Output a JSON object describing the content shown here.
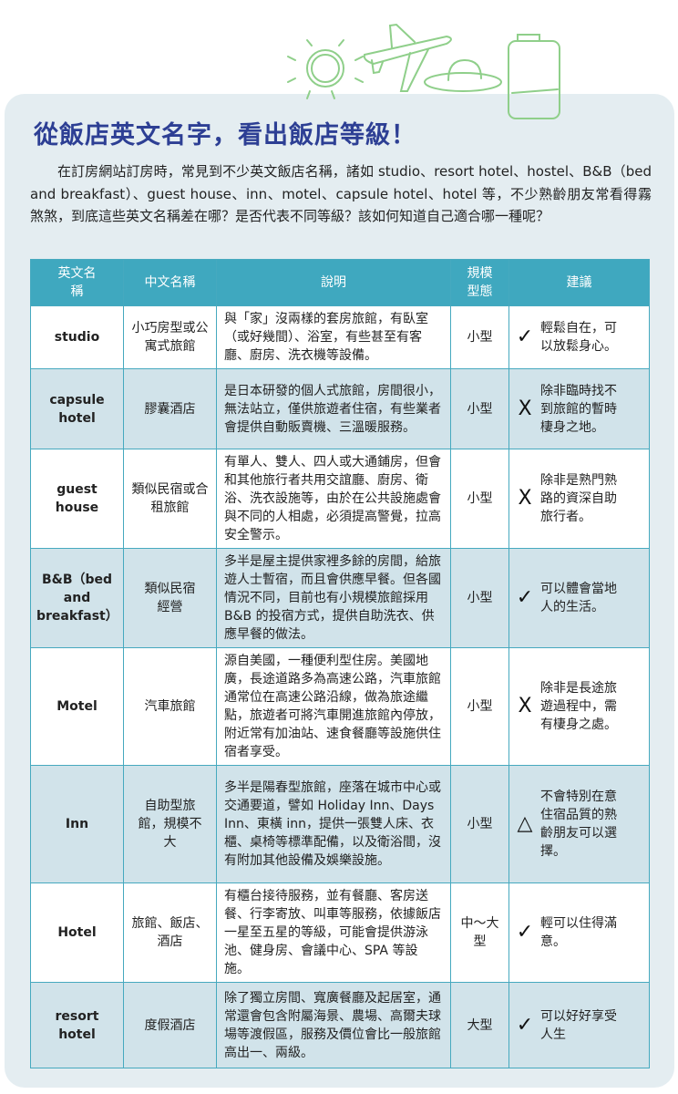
{
  "title": "從飯店英文名字，看出飯店等級！",
  "intro": "在訂房網站訂房時，常見到不少英文飯店名稱，諸如 studio、resort hotel、hostel、B&B（bed and breakfast）、guest house、inn、motel、capsule hotel、hotel 等，不少熟齡朋友常看得霧煞煞，到底這些英文名稱差在哪？是否代表不同等級？該如何知道自己適合哪一種呢？",
  "colors": {
    "title": "#2d3f94",
    "header": "#3fa8bf",
    "alt_row": "#d1e3ea",
    "card": "#e4edf1",
    "decoration": "#8fcf8a"
  },
  "decoration_icons": [
    "sun-icon",
    "airplane-icon",
    "hat-icon",
    "suitcase-icon"
  ],
  "table": {
    "headers": [
      "英文名稱",
      "中文名稱",
      "說明",
      "規模型態",
      "建議"
    ],
    "rows": [
      {
        "en": "studio",
        "zh": "小巧房型或公寓式旅館",
        "desc": "與「家」沒兩樣的套房旅館，有臥室（或好幾間）、浴室，有些甚至有客廳、廚房、洗衣機等設備。",
        "size": "小型",
        "mark": "✓",
        "mark_icon": "check-icon",
        "advice": "輕鬆自在，可以放鬆身心。"
      },
      {
        "en": "capsule hotel",
        "zh": "膠囊酒店",
        "desc": "是日本研發的個人式旅館，房間很小，無法站立，僅供旅遊者住宿，有些業者會提供自動販賣機、三溫暖服務。",
        "size": "小型",
        "mark": "X",
        "mark_icon": "cross-icon",
        "advice": "除非臨時找不到旅館的暫時棲身之地。"
      },
      {
        "en": "guest house",
        "zh": "類似民宿或合租旅館",
        "desc": "有單人、雙人、四人或大通鋪房，但會和其他旅行者共用交誼廳、廚房、衛浴、洗衣設施等，由於在公共設施處會與不同的人相處，必須提高警覺，拉高安全警示。",
        "size": "小型",
        "mark": "X",
        "mark_icon": "cross-icon",
        "advice": "除非是熟門熟路的資深自助旅行者。"
      },
      {
        "en": "B&B（bed and breakfast）",
        "zh": "類似民宿經營",
        "desc": "多半是屋主提供家裡多餘的房間，給旅遊人士暫宿，而且會供應早餐。但各國情況不同，目前也有小規模旅館採用 B&B 的投宿方式，提供自助洗衣、供應早餐的做法。",
        "size": "小型",
        "mark": "✓",
        "mark_icon": "check-icon",
        "advice": "可以體會當地人的生活。"
      },
      {
        "en": "Motel",
        "zh": "汽車旅館",
        "desc": "源自美國，一種便利型住房。美國地廣，長途道路多為高速公路，汽車旅館通常位在高速公路沿線，做為旅途繼點，旅遊者可將汽車開進旅館內停放，附近常有加油站、速食餐廳等設施供住宿者享受。",
        "size": "小型",
        "mark": "X",
        "mark_icon": "cross-icon",
        "advice": "除非是長途旅遊過程中，需有棲身之處。"
      },
      {
        "en": "Inn",
        "zh": "自助型旅館，規模不大",
        "desc": "多半是陽春型旅館，座落在城市中心或交通要道，譬如 Holiday Inn、Days Inn、東橫 inn，提供一張雙人床、衣櫃、桌椅等標準配備，以及衛浴間，沒有附加其他設備及娛樂設施。",
        "size": "小型",
        "mark": "△",
        "mark_icon": "triangle-icon",
        "advice": "不會特別在意住宿品質的熟齡朋友可以選擇。"
      },
      {
        "en": "Hotel",
        "zh": "旅館、飯店、酒店",
        "desc": "有櫃台接待服務，並有餐廳、客房送餐、行李寄放、叫車等服務，依據飯店一星至五星的等級，可能會提供游泳池、健身房、會議中心、SPA 等設施。",
        "size": "中～大型",
        "mark": "✓",
        "mark_icon": "check-icon",
        "advice": "輕可以住得滿意。"
      },
      {
        "en": "resort hotel",
        "zh": "度假酒店",
        "desc": "除了獨立房間、寬廣餐廳及起居室，通常還會包含附屬海景、農場、高爾夫球場等渡假區，服務及價位會比一般旅館高出一、兩級。",
        "size": "大型",
        "mark": "✓",
        "mark_icon": "check-icon",
        "advice": "可以好好享受人生"
      }
    ]
  }
}
